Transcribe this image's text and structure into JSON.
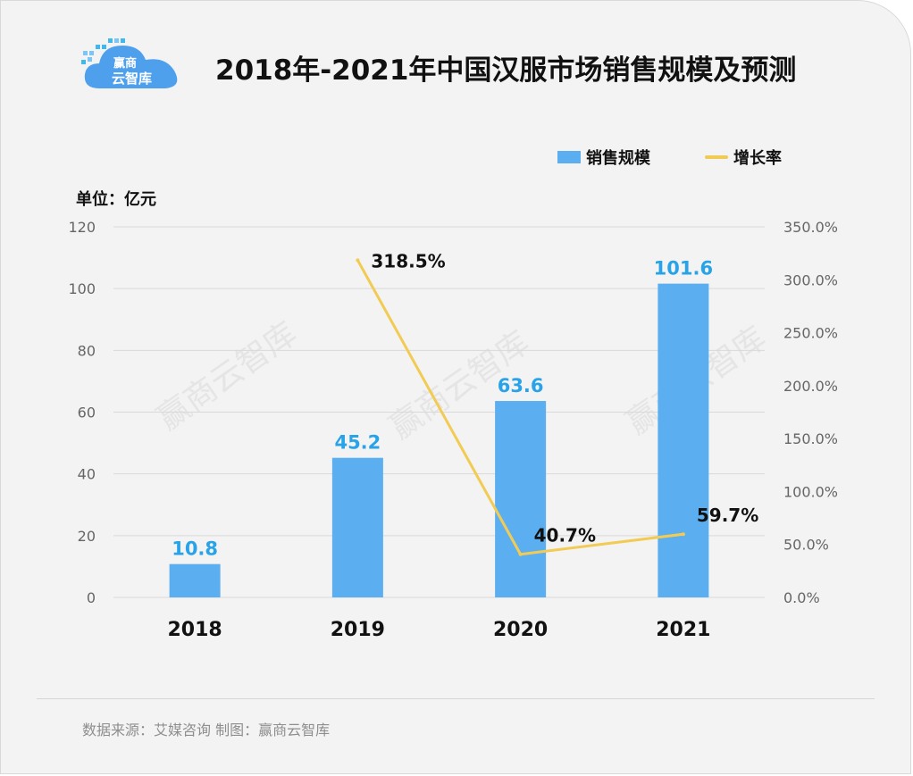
{
  "header": {
    "title": "2018年-2021年中国汉服市场销售规模及预测",
    "logo_text": "赢商 云智库"
  },
  "unit_label": "单位：亿元",
  "watermark_text": "赢商云智库",
  "footer": {
    "source": "数据来源：艾媒咨询  制图：赢商云智库"
  },
  "colors": {
    "bar": "#5baff0",
    "line": "#f2cb54",
    "bar_label": "#29a3e8",
    "line_label": "#111111",
    "grid": "#d9d9d9",
    "axis_tick": "#666666"
  },
  "chart_data": {
    "type": "bar",
    "title": "2018年-2021年中国汉服市场销售规模及预测",
    "categories": [
      "2018",
      "2019",
      "2020",
      "2021"
    ],
    "series": [
      {
        "name": "销售规模",
        "type": "bar",
        "axis": "left",
        "values": [
          10.8,
          45.2,
          63.6,
          101.6
        ],
        "labels": [
          "10.8",
          "45.2",
          "63.6",
          "101.6"
        ]
      },
      {
        "name": "增长率",
        "type": "line",
        "axis": "right",
        "values": [
          null,
          318.5,
          40.7,
          59.7
        ],
        "labels": [
          "",
          "318.5%",
          "40.7%",
          "59.7%"
        ]
      }
    ],
    "ylabel": "单位：亿元",
    "ylim": [
      0,
      120
    ],
    "yticks": [
      "0",
      "20",
      "40",
      "60",
      "80",
      "100",
      "120"
    ],
    "y2lim": [
      0,
      350
    ],
    "y2ticks": [
      "0.0%",
      "50.0%",
      "100.0%",
      "150.0%",
      "200.0%",
      "250.0%",
      "300.0%",
      "350.0%"
    ],
    "legend": "top-right",
    "grid": true
  }
}
